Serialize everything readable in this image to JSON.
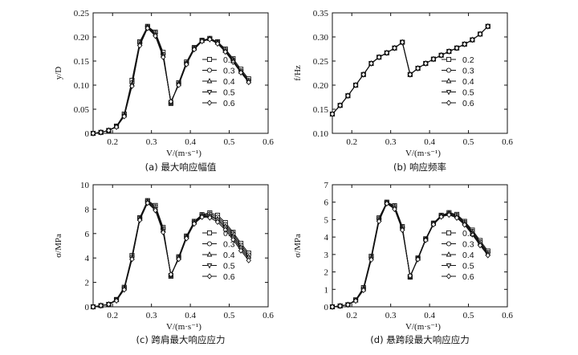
{
  "chart_data": [
    {
      "type": "line",
      "caption": "(a) 最大响应幅值",
      "ylabel": "y/D",
      "xlabel": "V/(m·s⁻¹)",
      "xlim": [
        0.15,
        0.6
      ],
      "ylim": [
        0,
        0.25
      ],
      "xticks": [
        "0.2",
        "0.3",
        "0.4",
        "0.5",
        "0.6"
      ],
      "yticks": [
        "0",
        "0.05",
        "0.10",
        "0.15",
        "0.20",
        "0.25"
      ],
      "legend": [
        "0.2",
        "0.3",
        "0.4",
        "0.5",
        "0.6"
      ],
      "x": [
        0.15,
        0.17,
        0.19,
        0.21,
        0.23,
        0.25,
        0.27,
        0.29,
        0.31,
        0.33,
        0.35,
        0.37,
        0.39,
        0.41,
        0.43,
        0.45,
        0.47,
        0.49,
        0.51,
        0.53,
        0.55
      ],
      "series": [
        {
          "name": "0.2",
          "values": [
            0,
            0.002,
            0.006,
            0.015,
            0.04,
            0.11,
            0.19,
            0.222,
            0.21,
            0.168,
            0.062,
            0.105,
            0.148,
            0.178,
            0.193,
            0.197,
            0.19,
            0.175,
            0.155,
            0.133,
            0.113
          ]
        },
        {
          "name": "0.3",
          "values": [
            0,
            0.002,
            0.006,
            0.014,
            0.038,
            0.105,
            0.188,
            0.221,
            0.208,
            0.164,
            0.063,
            0.103,
            0.146,
            0.177,
            0.193,
            0.196,
            0.189,
            0.173,
            0.152,
            0.13,
            0.11
          ]
        },
        {
          "name": "0.4",
          "values": [
            0,
            0.002,
            0.006,
            0.014,
            0.037,
            0.102,
            0.186,
            0.22,
            0.206,
            0.162,
            0.064,
            0.102,
            0.145,
            0.176,
            0.192,
            0.196,
            0.188,
            0.171,
            0.15,
            0.128,
            0.108
          ]
        },
        {
          "name": "0.5",
          "values": [
            0,
            0.002,
            0.006,
            0.014,
            0.036,
            0.1,
            0.184,
            0.219,
            0.204,
            0.16,
            0.065,
            0.101,
            0.144,
            0.175,
            0.192,
            0.195,
            0.187,
            0.17,
            0.149,
            0.127,
            0.107
          ]
        },
        {
          "name": "0.6",
          "values": [
            0,
            0.002,
            0.006,
            0.013,
            0.035,
            0.098,
            0.182,
            0.218,
            0.202,
            0.158,
            0.066,
            0.1,
            0.143,
            0.174,
            0.191,
            0.195,
            0.186,
            0.169,
            0.148,
            0.126,
            0.106
          ]
        }
      ]
    },
    {
      "type": "line",
      "caption": "(b) 响应频率",
      "ylabel": "f/Hz",
      "xlabel": "V/(m·s⁻¹)",
      "xlim": [
        0.15,
        0.6
      ],
      "ylim": [
        0.1,
        0.35
      ],
      "xticks": [
        "0.2",
        "0.3",
        "0.4",
        "0.5",
        "0.6"
      ],
      "yticks": [
        "0.10",
        "0.15",
        "0.20",
        "0.25",
        "0.30",
        "0.35"
      ],
      "legend": [
        "0.2",
        "0.3",
        "0.4",
        "0.5",
        "0.6"
      ],
      "x": [
        0.15,
        0.17,
        0.19,
        0.21,
        0.23,
        0.25,
        0.27,
        0.29,
        0.31,
        0.33,
        0.35,
        0.37,
        0.39,
        0.41,
        0.43,
        0.45,
        0.47,
        0.49,
        0.51,
        0.53,
        0.55
      ],
      "series": [
        {
          "name": "0.2",
          "values": [
            0.14,
            0.158,
            0.178,
            0.2,
            0.222,
            0.245,
            0.258,
            0.267,
            0.277,
            0.289,
            0.222,
            0.235,
            0.245,
            0.254,
            0.262,
            0.27,
            0.277,
            0.285,
            0.294,
            0.306,
            0.322
          ]
        },
        {
          "name": "0.3",
          "values": [
            0.14,
            0.158,
            0.178,
            0.2,
            0.222,
            0.245,
            0.258,
            0.267,
            0.277,
            0.289,
            0.222,
            0.235,
            0.245,
            0.254,
            0.262,
            0.27,
            0.277,
            0.285,
            0.294,
            0.306,
            0.322
          ]
        },
        {
          "name": "0.4",
          "values": [
            0.14,
            0.158,
            0.178,
            0.2,
            0.222,
            0.245,
            0.258,
            0.267,
            0.277,
            0.289,
            0.222,
            0.235,
            0.245,
            0.254,
            0.262,
            0.27,
            0.277,
            0.285,
            0.294,
            0.306,
            0.322
          ]
        },
        {
          "name": "0.5",
          "values": [
            0.14,
            0.158,
            0.178,
            0.2,
            0.222,
            0.245,
            0.258,
            0.267,
            0.277,
            0.289,
            0.222,
            0.235,
            0.245,
            0.254,
            0.262,
            0.27,
            0.277,
            0.285,
            0.294,
            0.306,
            0.322
          ]
        },
        {
          "name": "0.6",
          "values": [
            0.14,
            0.158,
            0.178,
            0.2,
            0.222,
            0.245,
            0.258,
            0.267,
            0.277,
            0.289,
            0.222,
            0.235,
            0.245,
            0.254,
            0.262,
            0.27,
            0.277,
            0.285,
            0.294,
            0.306,
            0.322
          ]
        }
      ]
    },
    {
      "type": "line",
      "caption": "(c) 跨肩最大响应应力",
      "ylabel": "σ/MPa",
      "xlabel": "V/(m·s⁻¹)",
      "xlim": [
        0.15,
        0.6
      ],
      "ylim": [
        0,
        10
      ],
      "xticks": [
        "0.2",
        "0.3",
        "0.4",
        "0.5",
        "0.6"
      ],
      "yticks": [
        "0",
        "2",
        "4",
        "6",
        "8",
        "10"
      ],
      "legend": [
        "0.2",
        "0.3",
        "0.4",
        "0.5",
        "0.6"
      ],
      "x": [
        0.15,
        0.17,
        0.19,
        0.21,
        0.23,
        0.25,
        0.27,
        0.29,
        0.31,
        0.33,
        0.35,
        0.37,
        0.39,
        0.41,
        0.43,
        0.45,
        0.47,
        0.49,
        0.51,
        0.53,
        0.55
      ],
      "series": [
        {
          "name": "0.2",
          "values": [
            0,
            0.1,
            0.2,
            0.6,
            1.6,
            4.2,
            7.3,
            8.7,
            8.3,
            6.5,
            2.5,
            4.1,
            5.8,
            7.0,
            7.55,
            7.7,
            7.5,
            6.9,
            6.1,
            5.2,
            4.4
          ]
        },
        {
          "name": "0.3",
          "values": [
            0,
            0.1,
            0.2,
            0.6,
            1.55,
            4.1,
            7.25,
            8.65,
            8.2,
            6.4,
            2.55,
            4.05,
            5.75,
            6.95,
            7.5,
            7.6,
            7.35,
            6.75,
            5.95,
            5.05,
            4.25
          ]
        },
        {
          "name": "0.4",
          "values": [
            0,
            0.1,
            0.2,
            0.55,
            1.5,
            4.0,
            7.2,
            8.6,
            8.1,
            6.3,
            2.6,
            4.0,
            5.7,
            6.9,
            7.45,
            7.5,
            7.2,
            6.6,
            5.8,
            4.9,
            4.1
          ]
        },
        {
          "name": "0.5",
          "values": [
            0,
            0.1,
            0.2,
            0.55,
            1.45,
            3.95,
            7.15,
            8.55,
            8.0,
            6.2,
            2.6,
            3.95,
            5.65,
            6.85,
            7.4,
            7.4,
            7.1,
            6.45,
            5.65,
            4.75,
            3.95
          ]
        },
        {
          "name": "0.6",
          "values": [
            0,
            0.1,
            0.2,
            0.5,
            1.4,
            3.9,
            7.1,
            8.5,
            7.9,
            6.1,
            2.65,
            3.9,
            5.6,
            6.8,
            7.35,
            7.3,
            6.95,
            6.3,
            5.5,
            4.6,
            3.8
          ]
        }
      ]
    },
    {
      "type": "line",
      "caption": "(d) 悬跨段最大响应应力",
      "ylabel": "σ/MPa",
      "xlabel": "V/(m·s⁻¹)",
      "xlim": [
        0.15,
        0.6
      ],
      "ylim": [
        0,
        7
      ],
      "xticks": [
        "0.2",
        "0.3",
        "0.4",
        "0.5",
        "0.6"
      ],
      "yticks": [
        "0",
        "1",
        "2",
        "3",
        "4",
        "5",
        "6",
        "7"
      ],
      "legend": [
        "0.2",
        "0.3",
        "0.4",
        "0.5",
        "0.6"
      ],
      "x": [
        0.15,
        0.17,
        0.19,
        0.21,
        0.23,
        0.25,
        0.27,
        0.29,
        0.31,
        0.33,
        0.35,
        0.37,
        0.39,
        0.41,
        0.43,
        0.45,
        0.47,
        0.49,
        0.51,
        0.53,
        0.55
      ],
      "series": [
        {
          "name": "0.2",
          "values": [
            0,
            0.05,
            0.12,
            0.4,
            1.1,
            2.9,
            5.1,
            6.0,
            5.8,
            4.6,
            1.7,
            2.8,
            3.9,
            4.8,
            5.25,
            5.4,
            5.3,
            4.9,
            4.4,
            3.8,
            3.2
          ]
        },
        {
          "name": "0.3",
          "values": [
            0,
            0.05,
            0.12,
            0.38,
            1.05,
            2.85,
            5.05,
            5.98,
            5.75,
            4.55,
            1.72,
            2.78,
            3.88,
            4.78,
            5.22,
            5.36,
            5.25,
            4.85,
            4.33,
            3.72,
            3.12
          ]
        },
        {
          "name": "0.4",
          "values": [
            0,
            0.05,
            0.12,
            0.36,
            1.0,
            2.8,
            5.0,
            5.96,
            5.7,
            4.5,
            1.74,
            2.76,
            3.86,
            4.76,
            5.2,
            5.33,
            5.2,
            4.8,
            4.27,
            3.65,
            3.06
          ]
        },
        {
          "name": "0.5",
          "values": [
            0,
            0.05,
            0.12,
            0.35,
            0.98,
            2.75,
            4.95,
            5.94,
            5.65,
            4.45,
            1.76,
            2.74,
            3.84,
            4.74,
            5.18,
            5.3,
            5.15,
            4.75,
            4.2,
            3.58,
            3.0
          ]
        },
        {
          "name": "0.6",
          "values": [
            0,
            0.05,
            0.12,
            0.34,
            0.95,
            2.7,
            4.9,
            5.92,
            5.6,
            4.4,
            1.78,
            2.72,
            3.82,
            4.72,
            5.16,
            5.27,
            5.1,
            4.7,
            4.14,
            3.52,
            2.95
          ]
        }
      ]
    }
  ]
}
